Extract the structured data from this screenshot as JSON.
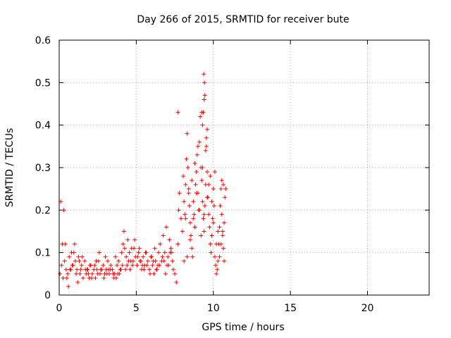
{
  "chart_data": {
    "type": "scatter",
    "title": "Day 266 of 2015, SRMTID for receiver bute",
    "xlabel": "GPS time / hours",
    "ylabel": "SRMTID / TECUs",
    "xlim": [
      0,
      24
    ],
    "ylim": [
      0,
      0.6
    ],
    "xticks": [
      0,
      5,
      10,
      15,
      20
    ],
    "xtick_labels": [
      "0",
      "5",
      "10",
      "15",
      "20"
    ],
    "yticks": [
      0,
      0.1,
      0.2,
      0.3,
      0.4,
      0.5,
      0.6
    ],
    "ytick_labels": [
      "0",
      "0.1",
      "0.2",
      "0.3",
      "0.4",
      "0.5",
      "0.6"
    ],
    "grid": true,
    "marker": "plus",
    "color": "#ff0000",
    "series": [
      {
        "name": "SRMTID",
        "x": [
          0.05,
          0.15,
          0.25,
          0.35,
          0.45,
          0.55,
          0.65,
          0.75,
          0.85,
          0.95,
          1.0,
          1.05,
          1.15,
          1.25,
          1.35,
          1.45,
          1.55,
          1.65,
          1.75,
          1.85,
          1.95,
          2.05,
          2.15,
          2.25,
          2.35,
          2.45,
          2.55,
          2.65,
          2.75,
          2.85,
          2.95,
          3.05,
          3.15,
          3.25,
          3.35,
          3.45,
          3.55,
          3.65,
          3.75,
          3.85,
          3.95,
          4.05,
          4.15,
          4.2,
          4.25,
          4.35,
          4.45,
          4.55,
          4.65,
          4.75,
          4.85,
          4.95,
          5.05,
          5.15,
          5.25,
          5.35,
          5.45,
          5.55,
          5.65,
          5.75,
          5.85,
          5.95,
          6.05,
          6.15,
          6.25,
          6.35,
          6.45,
          6.55,
          6.65,
          6.75,
          6.85,
          6.95,
          7.05,
          7.15,
          7.25,
          7.35,
          7.4,
          7.5,
          7.6,
          7.7,
          7.75,
          7.8,
          7.9,
          8.0,
          8.05,
          8.1,
          8.15,
          8.2,
          8.25,
          8.3,
          8.35,
          8.4,
          8.45,
          8.5,
          8.55,
          8.6,
          8.65,
          8.7,
          8.75,
          8.8,
          8.85,
          8.9,
          8.95,
          9.0,
          9.05,
          9.1,
          9.15,
          9.2,
          9.25,
          9.3,
          9.35,
          9.4,
          9.45,
          9.5,
          9.55,
          9.6,
          9.65,
          9.7,
          9.75,
          9.8,
          9.85,
          9.9,
          9.95,
          10.0,
          10.05,
          10.1,
          10.15,
          10.2,
          10.25,
          10.3,
          10.35,
          10.4,
          10.45,
          10.5,
          10.55,
          10.6,
          10.65,
          10.7,
          0.1,
          0.3,
          0.5,
          0.7,
          0.9,
          1.1,
          1.3,
          1.5,
          1.7,
          1.9,
          2.1,
          2.3,
          2.5,
          2.7,
          2.9,
          3.1,
          3.3,
          3.5,
          3.7,
          3.9,
          4.1,
          4.3,
          4.5,
          4.7,
          4.9,
          5.1,
          5.3,
          5.5,
          5.7,
          5.9,
          6.1,
          6.3,
          6.5,
          6.7,
          6.9,
          7.1,
          7.3,
          0.2,
          0.6,
          1.2,
          1.8,
          2.4,
          3.0,
          3.6,
          4.0,
          4.4,
          4.8,
          5.2,
          5.6,
          6.0,
          6.4,
          6.8,
          7.2,
          0.4,
          0.8,
          1.4,
          2.0,
          2.6,
          3.2,
          3.8,
          4.6,
          5.4,
          6.2,
          7.0,
          8.1,
          8.3,
          8.5,
          8.7,
          8.9,
          9.1,
          9.3,
          9.5,
          9.7,
          9.9,
          10.1,
          10.3,
          10.5,
          10.7,
          8.2,
          8.4,
          8.6,
          8.8,
          9.0,
          9.2,
          9.4,
          9.6,
          9.8,
          10.0,
          10.2,
          10.4,
          10.6,
          9.35,
          9.38,
          9.42,
          9.45,
          9.4,
          9.3,
          9.25,
          9.6,
          9.55,
          7.7,
          10.8,
          10.75,
          10.65,
          10.55
        ],
        "y": [
          0.05,
          0.07,
          0.04,
          0.08,
          0.06,
          0.05,
          0.09,
          0.06,
          0.07,
          0.1,
          0.12,
          0.08,
          0.06,
          0.09,
          0.05,
          0.07,
          0.04,
          0.08,
          0.05,
          0.06,
          0.04,
          0.07,
          0.05,
          0.06,
          0.04,
          0.06,
          0.08,
          0.05,
          0.06,
          0.07,
          0.05,
          0.06,
          0.08,
          0.05,
          0.07,
          0.06,
          0.04,
          0.09,
          0.07,
          0.08,
          0.06,
          0.1,
          0.12,
          0.15,
          0.11,
          0.09,
          0.13,
          0.1,
          0.08,
          0.07,
          0.11,
          0.09,
          0.07,
          0.1,
          0.08,
          0.06,
          0.09,
          0.07,
          0.1,
          0.08,
          0.06,
          0.09,
          0.07,
          0.05,
          0.08,
          0.06,
          0.1,
          0.12,
          0.08,
          0.14,
          0.1,
          0.16,
          0.09,
          0.13,
          0.11,
          0.08,
          0.06,
          0.05,
          0.03,
          0.12,
          0.2,
          0.24,
          0.18,
          0.15,
          0.28,
          0.22,
          0.19,
          0.26,
          0.32,
          0.38,
          0.3,
          0.25,
          0.21,
          0.17,
          0.14,
          0.11,
          0.09,
          0.22,
          0.19,
          0.16,
          0.26,
          0.29,
          0.33,
          0.24,
          0.2,
          0.36,
          0.42,
          0.3,
          0.27,
          0.22,
          0.18,
          0.15,
          0.21,
          0.26,
          0.35,
          0.29,
          0.23,
          0.19,
          0.16,
          0.12,
          0.1,
          0.14,
          0.18,
          0.25,
          0.21,
          0.09,
          0.07,
          0.05,
          0.06,
          0.08,
          0.12,
          0.16,
          0.21,
          0.25,
          0.19,
          0.14,
          0.11,
          0.17,
          0.22,
          0.2,
          0.04,
          0.06,
          0.07,
          0.05,
          0.08,
          0.09,
          0.06,
          0.05,
          0.04,
          0.07,
          0.05,
          0.06,
          0.04,
          0.05,
          0.06,
          0.05,
          0.04,
          0.05,
          0.07,
          0.06,
          0.08,
          0.11,
          0.13,
          0.09,
          0.08,
          0.06,
          0.07,
          0.05,
          0.08,
          0.06,
          0.07,
          0.09,
          0.05,
          0.07,
          0.1,
          0.12,
          0.02,
          0.03,
          0.06,
          0.08,
          0.09,
          0.05,
          0.06,
          0.07,
          0.08,
          0.11,
          0.1,
          0.09,
          0.07,
          0.08,
          0.1,
          0.12,
          0.1,
          0.06,
          0.07,
          0.1,
          0.06,
          0.05,
          0.06,
          0.07,
          0.11,
          0.07,
          0.08,
          0.09,
          0.13,
          0.18,
          0.24,
          0.2,
          0.3,
          0.34,
          0.26,
          0.22,
          0.29,
          0.15,
          0.12,
          0.08,
          0.18,
          0.24,
          0.27,
          0.31,
          0.35,
          0.14,
          0.19,
          0.23,
          0.28,
          0.17,
          0.12,
          0.09,
          0.15,
          0.43,
          0.52,
          0.5,
          0.47,
          0.46,
          0.4,
          0.43,
          0.39,
          0.37,
          0.43,
          0.25,
          0.23,
          0.26,
          0.27
        ]
      }
    ]
  }
}
